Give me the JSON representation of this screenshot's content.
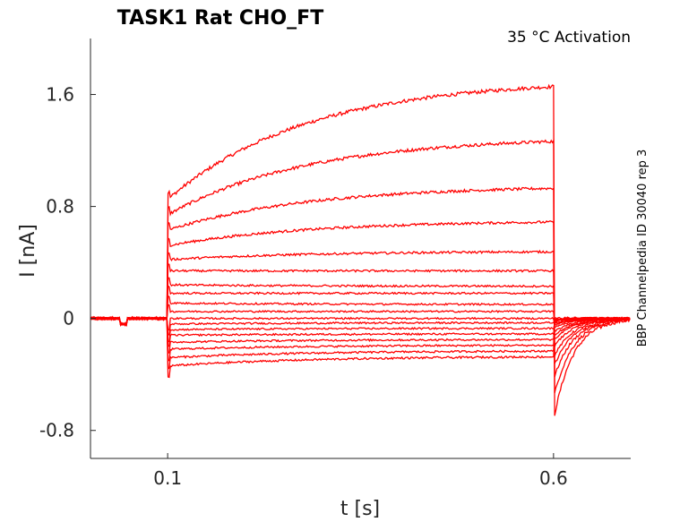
{
  "chart_data": {
    "type": "line",
    "title": "TASK1  Rat  CHO_FT",
    "annotation": "35 °C  Activation",
    "side_label": "BBP Channelpedia ID 30040 rep 3",
    "xlabel": "t [s]",
    "ylabel": "I [nA]",
    "xlim": [
      0.0,
      0.7
    ],
    "ylim": [
      -1.0,
      2.0
    ],
    "x_ticks": [
      0.1,
      0.6
    ],
    "x_tick_labels": [
      "0.1",
      "0.6"
    ],
    "y_ticks": [
      -0.8,
      0,
      0.8,
      1.6
    ],
    "y_tick_labels": [
      "-0.8",
      "0",
      "0.8",
      "1.6"
    ],
    "grid": false,
    "legend": "none",
    "color": "#ff0000",
    "step_on": 0.1,
    "step_off": 0.6,
    "series": [
      {
        "initial": 0.85,
        "steady": 1.71,
        "tail_peak": -0.74
      },
      {
        "initial": 0.74,
        "steady": 1.3,
        "tail_peak": -0.58
      },
      {
        "initial": 0.63,
        "steady": 0.95,
        "tail_peak": -0.45
      },
      {
        "initial": 0.52,
        "steady": 0.7,
        "tail_peak": -0.36
      },
      {
        "initial": 0.42,
        "steady": 0.48,
        "tail_peak": -0.29
      },
      {
        "initial": 0.34,
        "steady": 0.34,
        "tail_peak": -0.22
      },
      {
        "initial": 0.24,
        "steady": 0.23,
        "tail_peak": -0.17
      },
      {
        "initial": 0.18,
        "steady": 0.18,
        "tail_peak": -0.14
      },
      {
        "initial": 0.11,
        "steady": 0.1,
        "tail_peak": -0.11
      },
      {
        "initial": 0.05,
        "steady": 0.05,
        "tail_peak": -0.08
      },
      {
        "initial": 0.0,
        "steady": 0.0,
        "tail_peak": -0.06
      },
      {
        "initial": -0.04,
        "steady": -0.03,
        "tail_peak": -0.05
      },
      {
        "initial": -0.08,
        "steady": -0.07,
        "tail_peak": -0.04
      },
      {
        "initial": -0.12,
        "steady": -0.11,
        "tail_peak": -0.03
      },
      {
        "initial": -0.17,
        "steady": -0.15,
        "tail_peak": -0.03
      },
      {
        "initial": -0.22,
        "steady": -0.19,
        "tail_peak": -0.02
      },
      {
        "initial": -0.28,
        "steady": -0.23,
        "tail_peak": -0.02
      },
      {
        "initial": -0.34,
        "steady": -0.27,
        "tail_peak": -0.01
      }
    ]
  }
}
